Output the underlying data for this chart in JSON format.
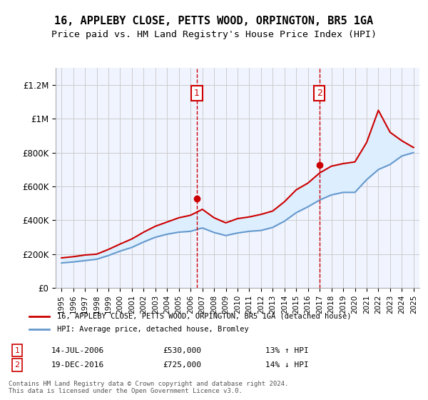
{
  "title": "16, APPLEBY CLOSE, PETTS WOOD, ORPINGTON, BR5 1GA",
  "subtitle": "Price paid vs. HM Land Registry's House Price Index (HPI)",
  "legend_line1": "16, APPLEBY CLOSE, PETTS WOOD, ORPINGTON, BR5 1GA (detached house)",
  "legend_line2": "HPI: Average price, detached house, Bromley",
  "footnote": "Contains HM Land Registry data © Crown copyright and database right 2024.\nThis data is licensed under the Open Government Licence v3.0.",
  "sale1_date": "14-JUL-2006",
  "sale1_price": 530000,
  "sale1_pct": "13% ↑ HPI",
  "sale1_year": 2006.54,
  "sale2_date": "19-DEC-2016",
  "sale2_price": 725000,
  "sale2_pct": "14% ↓ HPI",
  "sale2_year": 2016.97,
  "ylim": [
    0,
    1300000
  ],
  "xlim_start": 1994.5,
  "xlim_end": 2025.5,
  "red_color": "#cc0000",
  "blue_color": "#6699cc",
  "shade_color": "#ddeeff",
  "bg_color": "#f0f4ff",
  "plot_bg": "#f0f4ff",
  "years": [
    1995,
    1996,
    1997,
    1998,
    1999,
    2000,
    2001,
    2002,
    2003,
    2004,
    2005,
    2006,
    2007,
    2008,
    2009,
    2010,
    2011,
    2012,
    2013,
    2014,
    2015,
    2016,
    2017,
    2018,
    2019,
    2020,
    2021,
    2022,
    2023,
    2024,
    2025
  ],
  "hpi_values": [
    148000,
    154000,
    162000,
    170000,
    192000,
    218000,
    240000,
    272000,
    300000,
    318000,
    330000,
    335000,
    355000,
    328000,
    310000,
    325000,
    335000,
    340000,
    358000,
    395000,
    445000,
    480000,
    520000,
    550000,
    565000,
    565000,
    640000,
    700000,
    730000,
    780000,
    800000
  ],
  "red_values": [
    178000,
    185000,
    195000,
    200000,
    228000,
    260000,
    290000,
    330000,
    365000,
    390000,
    415000,
    430000,
    465000,
    415000,
    385000,
    410000,
    420000,
    435000,
    455000,
    510000,
    580000,
    620000,
    680000,
    720000,
    735000,
    745000,
    860000,
    1050000,
    920000,
    870000,
    830000
  ]
}
